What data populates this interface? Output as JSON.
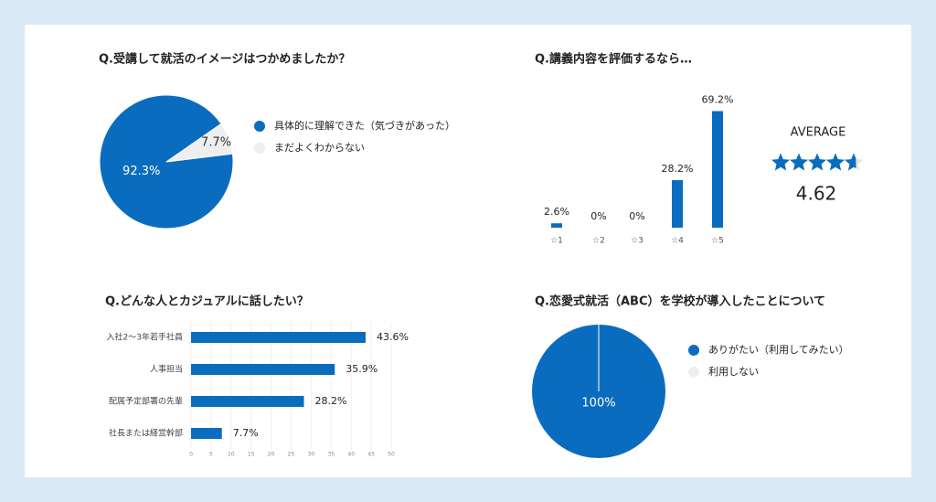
{
  "chart_data": [
    {
      "type": "pie",
      "title": "Q.受講して就活のイメージはつかめましたか？",
      "categories": [
        "具体的に理解できた（気づきがあった）",
        "まだよくわからない"
      ],
      "values": [
        92.3,
        7.7
      ],
      "value_labels": [
        "92.3%",
        "7.7%"
      ],
      "colors": [
        "#0a6cbf",
        "#eeeeee"
      ]
    },
    {
      "type": "bar",
      "title": "Q.講義内容を評価するなら…",
      "categories": [
        "☆1",
        "☆2",
        "☆3",
        "☆4",
        "☆5"
      ],
      "values": [
        2.6,
        0,
        0,
        28.2,
        69.2
      ],
      "value_labels": [
        "2.6%",
        "0%",
        "0%",
        "28.2%",
        "69.2%"
      ],
      "color": "#0a6cbf",
      "ylim": [
        0,
        70
      ],
      "average_label": "AVERAGE",
      "average": 4.62
    },
    {
      "type": "hbar",
      "title": "Q.どんな人とカジュアルに話したい？",
      "categories": [
        "入社2〜3年若手社員",
        "人事担当",
        "配属予定部署の先輩",
        "社長または経営幹部"
      ],
      "values": [
        43.6,
        35.9,
        28.2,
        7.7
      ],
      "value_labels": [
        "43.6%",
        "35.9%",
        "28.2%",
        "7.7%"
      ],
      "color": "#0a6cbf",
      "xlim": [
        0,
        50
      ],
      "xticks": [
        0,
        5,
        10,
        15,
        20,
        25,
        30,
        35,
        40,
        45,
        50
      ],
      "grid": true
    },
    {
      "type": "pie",
      "title": "Q.恋愛式就活（ABC）を学校が導入したことについて",
      "categories": [
        "ありがたい（利用してみたい）",
        "利用しない"
      ],
      "values": [
        100,
        0
      ],
      "value_labels": [
        "100%",
        null
      ],
      "colors": [
        "#0a6cbf",
        "#eeeeee"
      ]
    }
  ]
}
